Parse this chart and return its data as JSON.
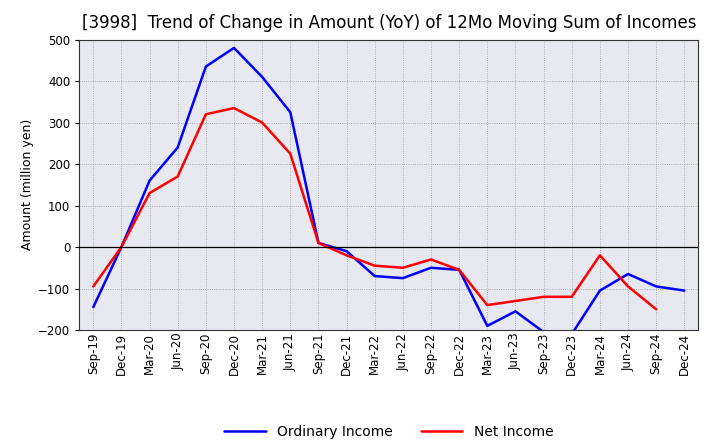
{
  "title": "[3998]  Trend of Change in Amount (YoY) of 12Mo Moving Sum of Incomes",
  "ylabel": "Amount (million yen)",
  "x_labels": [
    "Sep-19",
    "Dec-19",
    "Mar-20",
    "Jun-20",
    "Sep-20",
    "Dec-20",
    "Mar-21",
    "Jun-21",
    "Sep-21",
    "Dec-21",
    "Mar-22",
    "Jun-22",
    "Sep-22",
    "Dec-22",
    "Mar-23",
    "Jun-23",
    "Sep-23",
    "Dec-23",
    "Mar-24",
    "Jun-24",
    "Sep-24",
    "Dec-24"
  ],
  "ordinary_income": [
    -145,
    0,
    160,
    240,
    435,
    480,
    410,
    325,
    10,
    -10,
    -70,
    -75,
    -50,
    -55,
    -190,
    -155,
    -205,
    -210,
    -105,
    -65,
    -95,
    -105
  ],
  "net_income": [
    -95,
    0,
    130,
    170,
    320,
    335,
    300,
    225,
    10,
    -20,
    -45,
    -50,
    -30,
    -55,
    -140,
    -130,
    -120,
    -120,
    -20,
    -95,
    -150,
    null
  ],
  "ordinary_income_color": "#0000ff",
  "net_income_color": "#ff0000",
  "background_color": "#ffffff",
  "plot_bg_color": "#e8e8f0",
  "grid_color": "#999999",
  "zero_line_color": "#000000",
  "ylim": [
    -200,
    500
  ],
  "yticks": [
    -200,
    -100,
    0,
    100,
    200,
    300,
    400,
    500
  ],
  "title_fontsize": 12,
  "axis_fontsize": 9,
  "tick_fontsize": 8.5,
  "legend_labels": [
    "Ordinary Income",
    "Net Income"
  ],
  "legend_fontsize": 10,
  "line_width": 1.8
}
